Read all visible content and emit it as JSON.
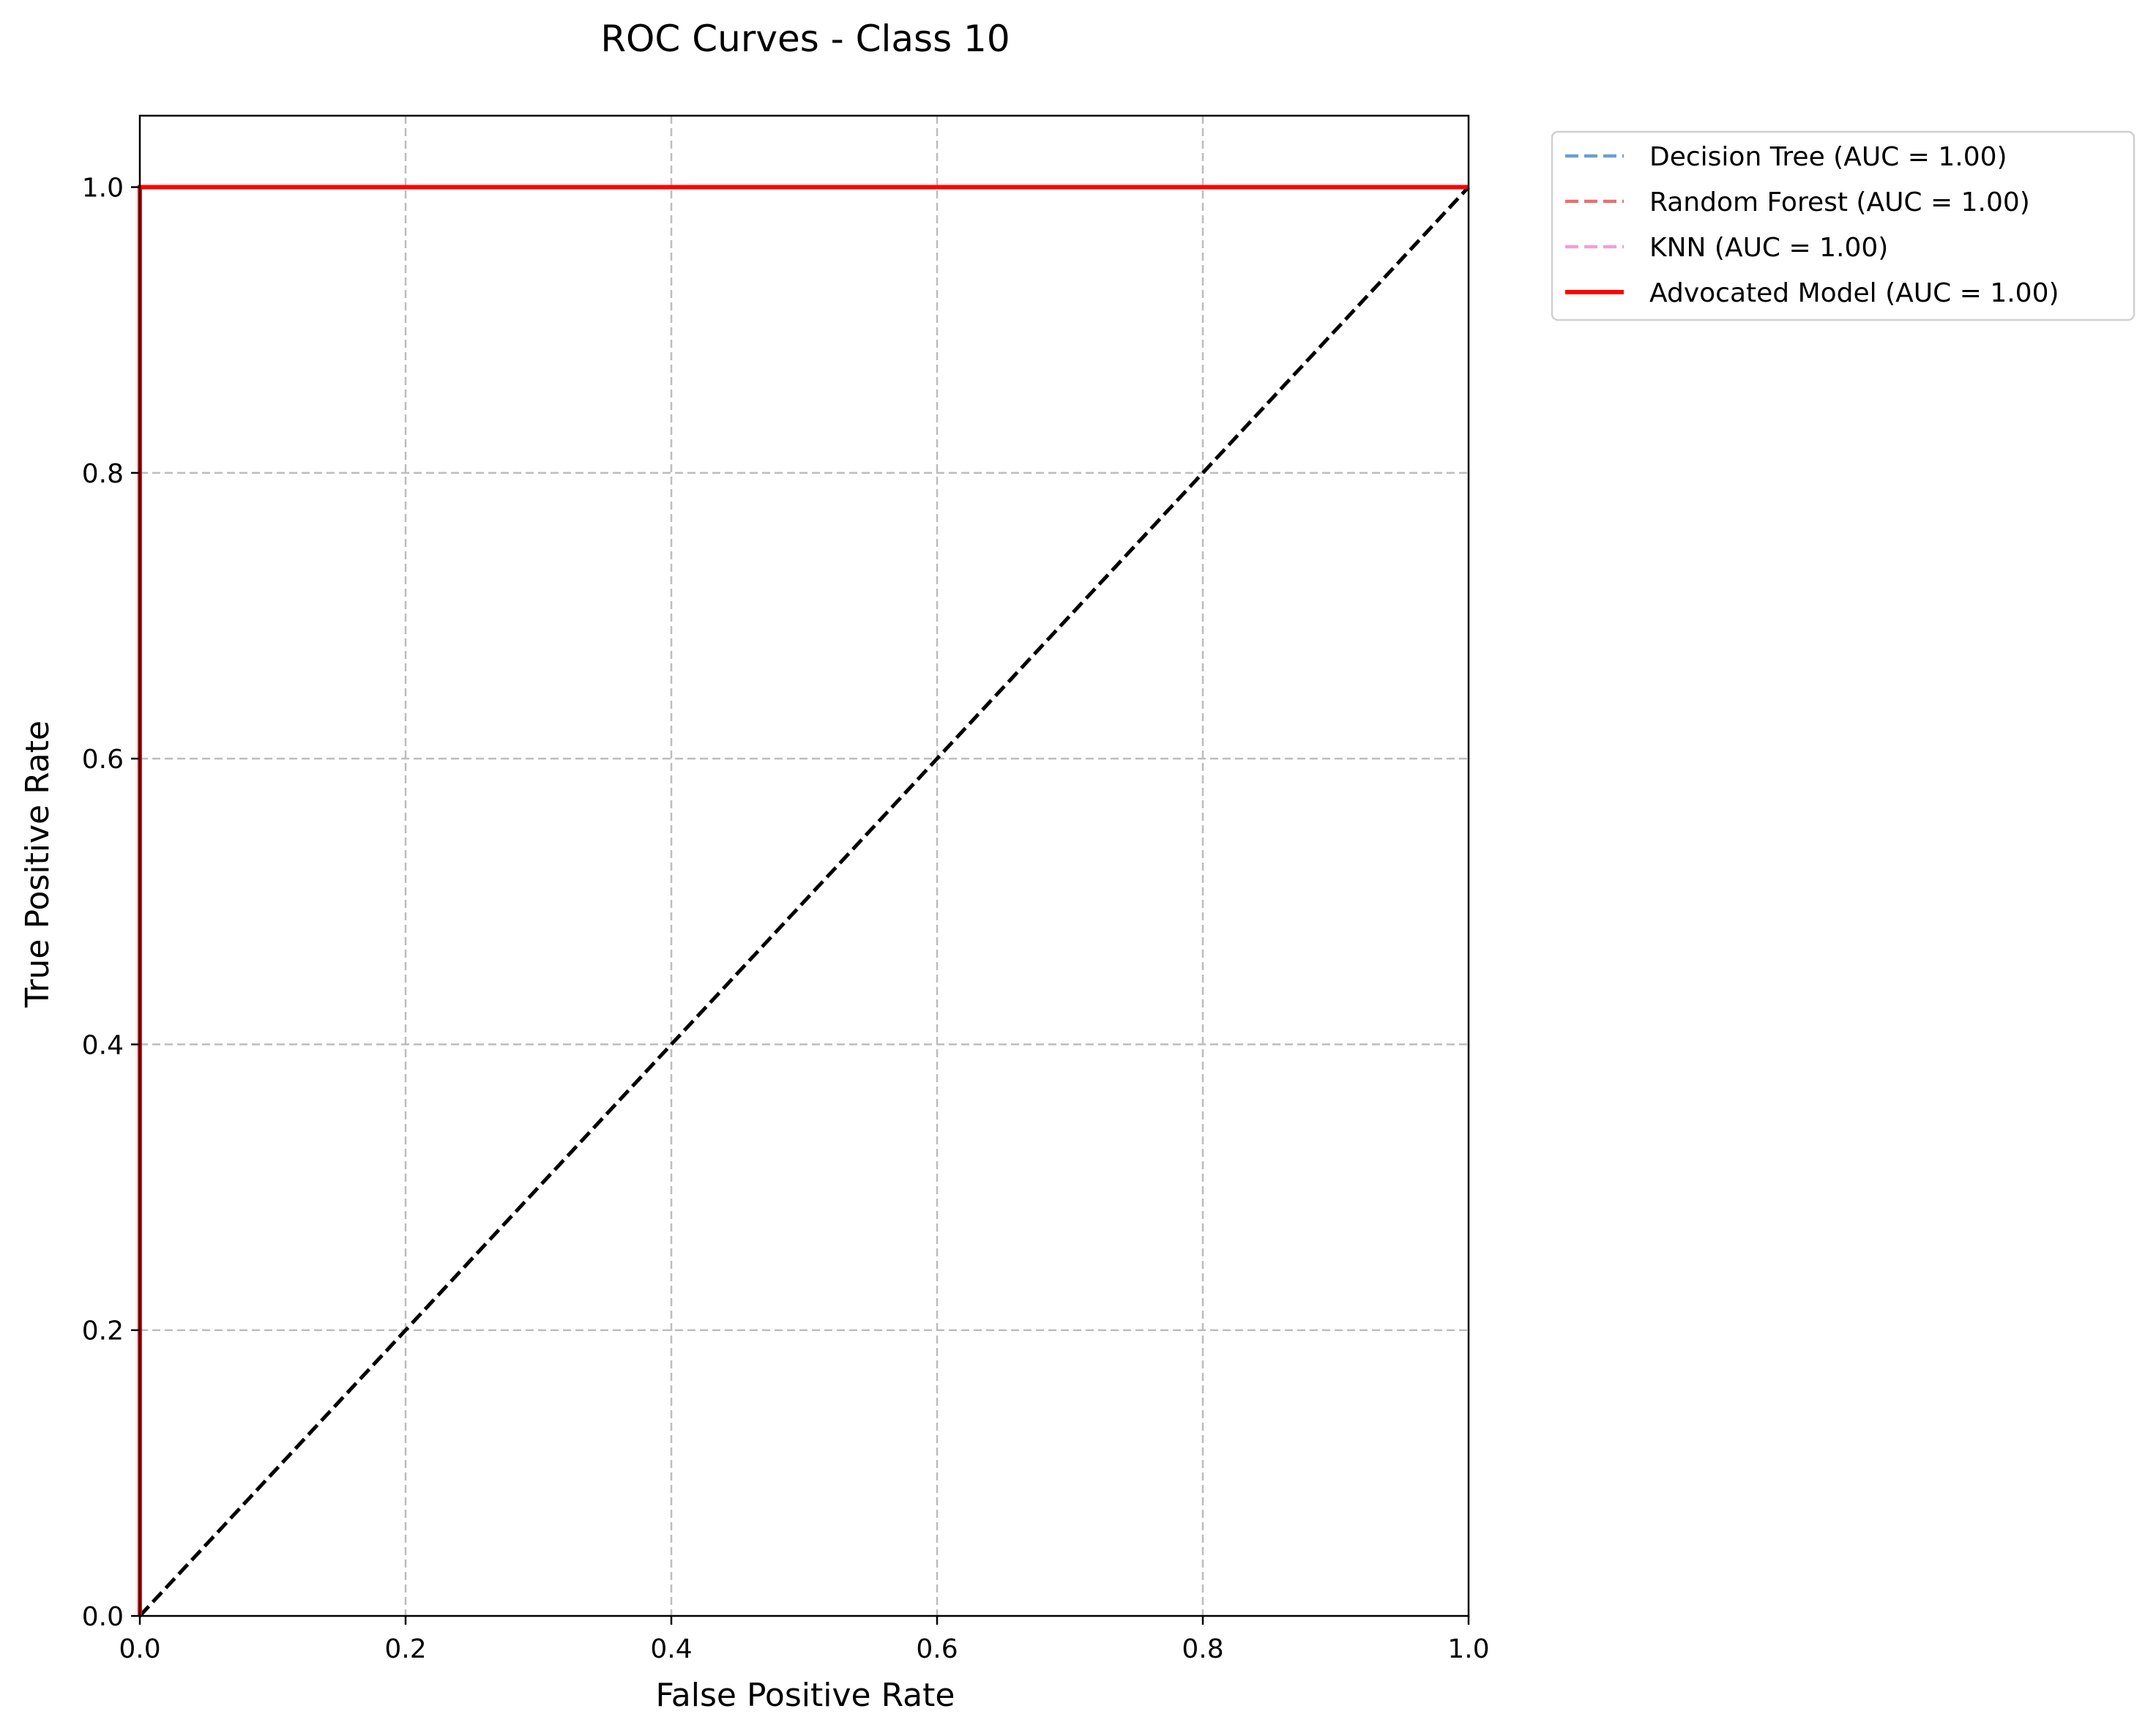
{
  "chart_data": {
    "type": "line",
    "title": "ROC Curves - Class 10",
    "xlabel": "False Positive Rate",
    "ylabel": "True Positive Rate",
    "xlim": [
      0,
      1
    ],
    "ylim": [
      0,
      1.05
    ],
    "xticks": [
      0.0,
      0.2,
      0.4,
      0.6,
      0.8,
      1.0
    ],
    "yticks": [
      0.0,
      0.2,
      0.4,
      0.6,
      0.8,
      1.0
    ],
    "xtick_labels": [
      "0.0",
      "0.2",
      "0.4",
      "0.6",
      "0.8",
      "1.0"
    ],
    "ytick_labels": [
      "0.0",
      "0.2",
      "0.4",
      "0.6",
      "0.8",
      "1.0"
    ],
    "grid": true,
    "legend_position": "outside-right-top",
    "series": [
      {
        "name": "Decision Tree (AUC = 1.00)",
        "color": "#6a9fd0",
        "dash": "dashed",
        "points": [
          [
            0,
            0
          ],
          [
            0,
            1
          ],
          [
            1,
            1
          ]
        ]
      },
      {
        "name": "Random Forest (AUC = 1.00)",
        "color": "#e8706a",
        "dash": "dashed",
        "points": [
          [
            0,
            0
          ],
          [
            0,
            1
          ],
          [
            1,
            1
          ]
        ]
      },
      {
        "name": "KNN (AUC = 1.00)",
        "color": "#eea0d6",
        "dash": "dashed",
        "points": [
          [
            0,
            0
          ],
          [
            0,
            1
          ],
          [
            1,
            1
          ]
        ]
      },
      {
        "name": "Advocated Model (AUC = 1.00)",
        "color": "#ff0000",
        "dash": "solid",
        "points": [
          [
            0,
            0
          ],
          [
            0,
            1
          ],
          [
            1,
            1
          ]
        ]
      }
    ],
    "reference_line": {
      "color": "#000000",
      "dash": "dashed",
      "points": [
        [
          0,
          0
        ],
        [
          1,
          1
        ]
      ]
    }
  }
}
